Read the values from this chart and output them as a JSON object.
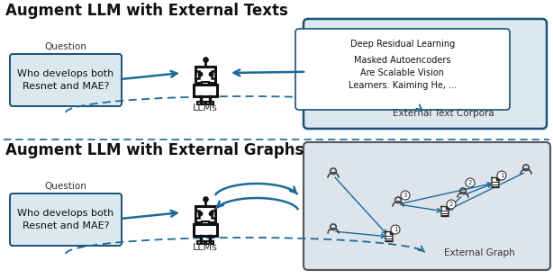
{
  "title_top": "Augment LLM with External Texts",
  "title_bottom": "Augment LLM with External Graphs",
  "question_text": "Who develops both\nResnet and MAE?",
  "question_label": "Question",
  "llms_label": "LLMs",
  "text_corpora_label": "External Text Corpora",
  "graph_label": "External Graph",
  "doc_text_line1": "Deep Residual Learning",
  "doc_text_inner": "Masked Autoencoders\nAre Scalable Vision\nLearners. Kaiming He, ...",
  "bg_color": "#ffffff",
  "box_fill": "#dce8f0",
  "box_border": "#1a5276",
  "arrow_color": "#1a6b9a",
  "dash_color": "#1a6b9a",
  "graph_fill": "#dde4eb",
  "graph_border": "#555555",
  "node_color": "#444444",
  "title_fontsize": 12,
  "label_fontsize": 7.5,
  "body_fontsize": 7,
  "small_fontsize": 6
}
